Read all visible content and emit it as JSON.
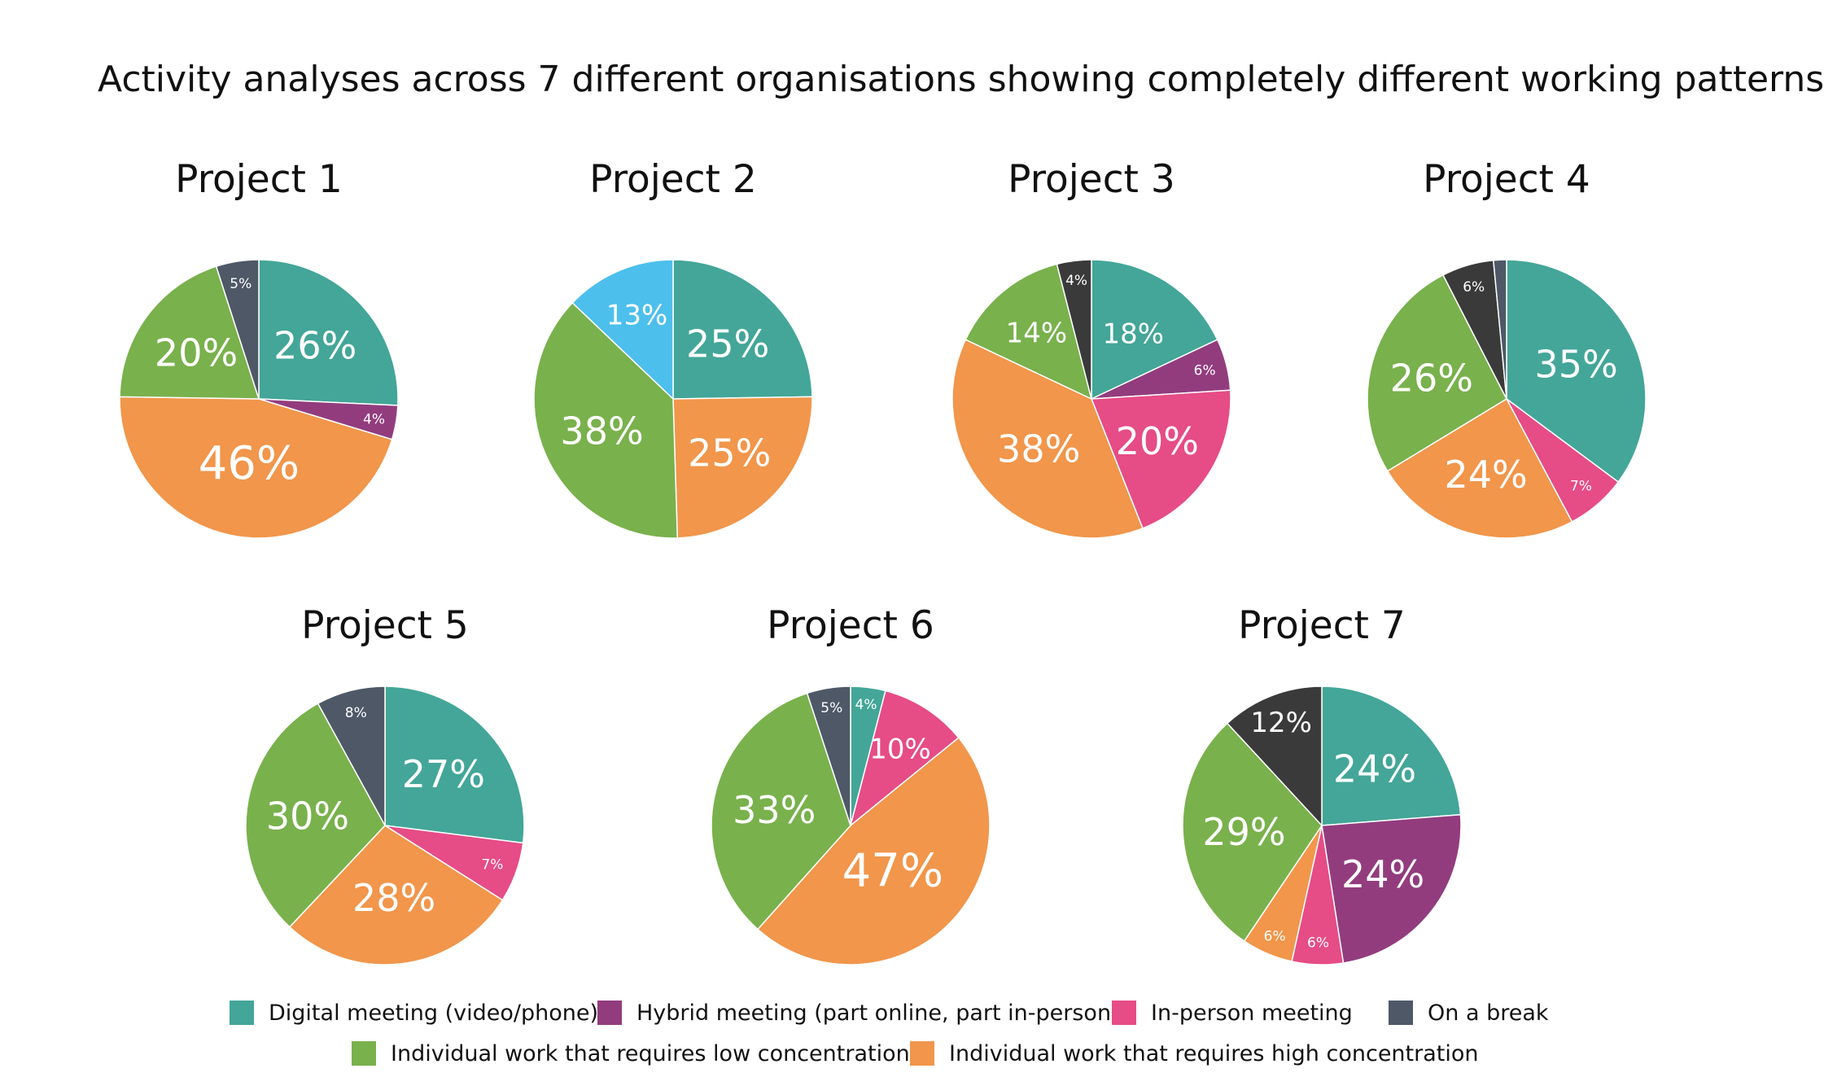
{
  "title": "Activity analyses across 7 different organisations showing completely different working patterns",
  "colors": {
    "digital": "#43A698",
    "hybrid": "#923C7E",
    "inperson": "#E64C86",
    "break": "#4E5867",
    "low": "#79B14C",
    "high": "#F1964B",
    "other_blue": "#4DBFEC",
    "dark": "#3A3A3A"
  },
  "legend": [
    {
      "key": "digital",
      "label": "Digital meeting (video/phone)"
    },
    {
      "key": "hybrid",
      "label": "Hybrid meeting (part online, part in-person)"
    },
    {
      "key": "inperson",
      "label": "In-person meeting"
    },
    {
      "key": "break",
      "label": "On a break"
    },
    {
      "key": "low",
      "label": "Individual work that requires low concentration"
    },
    {
      "key": "high",
      "label": "Individual work that requires high concentration"
    }
  ],
  "chart_data": [
    {
      "type": "pie",
      "title": "Project 1",
      "slices": [
        {
          "key": "digital",
          "value": 26,
          "label": "26%"
        },
        {
          "key": "hybrid",
          "value": 4,
          "label": "4%"
        },
        {
          "key": "high",
          "value": 46,
          "label": "46%"
        },
        {
          "key": "low",
          "value": 20,
          "label": "20%"
        },
        {
          "key": "break",
          "value": 5,
          "label": "5%"
        }
      ]
    },
    {
      "type": "pie",
      "title": "Project 2",
      "slices": [
        {
          "key": "digital",
          "value": 25,
          "label": "25%"
        },
        {
          "key": "high",
          "value": 25,
          "label": "25%"
        },
        {
          "key": "low",
          "value": 38,
          "label": "38%"
        },
        {
          "key": "other_blue",
          "value": 13,
          "label": "13%"
        }
      ]
    },
    {
      "type": "pie",
      "title": "Project 3",
      "slices": [
        {
          "key": "digital",
          "value": 18,
          "label": "18%"
        },
        {
          "key": "hybrid",
          "value": 6,
          "label": "6%"
        },
        {
          "key": "inperson",
          "value": 20,
          "label": "20%"
        },
        {
          "key": "high",
          "value": 38,
          "label": "38%"
        },
        {
          "key": "low",
          "value": 14,
          "label": "14%"
        },
        {
          "key": "dark",
          "value": 4,
          "label": "4%"
        }
      ]
    },
    {
      "type": "pie",
      "title": "Project 4",
      "slices": [
        {
          "key": "digital",
          "value": 35,
          "label": "35%"
        },
        {
          "key": "inperson",
          "value": 7,
          "label": "7%"
        },
        {
          "key": "high",
          "value": 24,
          "label": "24%"
        },
        {
          "key": "low",
          "value": 26,
          "label": "26%"
        },
        {
          "key": "dark",
          "value": 6,
          "label": "6%"
        },
        {
          "key": "break",
          "value": 1.5,
          "label": ""
        }
      ]
    },
    {
      "type": "pie",
      "title": "Project 5",
      "slices": [
        {
          "key": "digital",
          "value": 27,
          "label": "27%"
        },
        {
          "key": "inperson",
          "value": 7,
          "label": "7%"
        },
        {
          "key": "high",
          "value": 28,
          "label": "28%"
        },
        {
          "key": "low",
          "value": 30,
          "label": "30%"
        },
        {
          "key": "break",
          "value": 8,
          "label": "8%"
        }
      ]
    },
    {
      "type": "pie",
      "title": "Project 6",
      "slices": [
        {
          "key": "digital",
          "value": 4,
          "label": "4%"
        },
        {
          "key": "inperson",
          "value": 10,
          "label": "10%"
        },
        {
          "key": "high",
          "value": 47,
          "label": "47%"
        },
        {
          "key": "low",
          "value": 33,
          "label": "33%"
        },
        {
          "key": "break",
          "value": 5,
          "label": "5%"
        }
      ]
    },
    {
      "type": "pie",
      "title": "Project 7",
      "slices": [
        {
          "key": "digital",
          "value": 24,
          "label": "24%"
        },
        {
          "key": "hybrid",
          "value": 24,
          "label": "24%"
        },
        {
          "key": "inperson",
          "value": 6,
          "label": "6%"
        },
        {
          "key": "high",
          "value": 6,
          "label": "6%"
        },
        {
          "key": "low",
          "value": 29,
          "label": "29%"
        },
        {
          "key": "dark",
          "value": 12,
          "label": "12%"
        }
      ]
    }
  ]
}
